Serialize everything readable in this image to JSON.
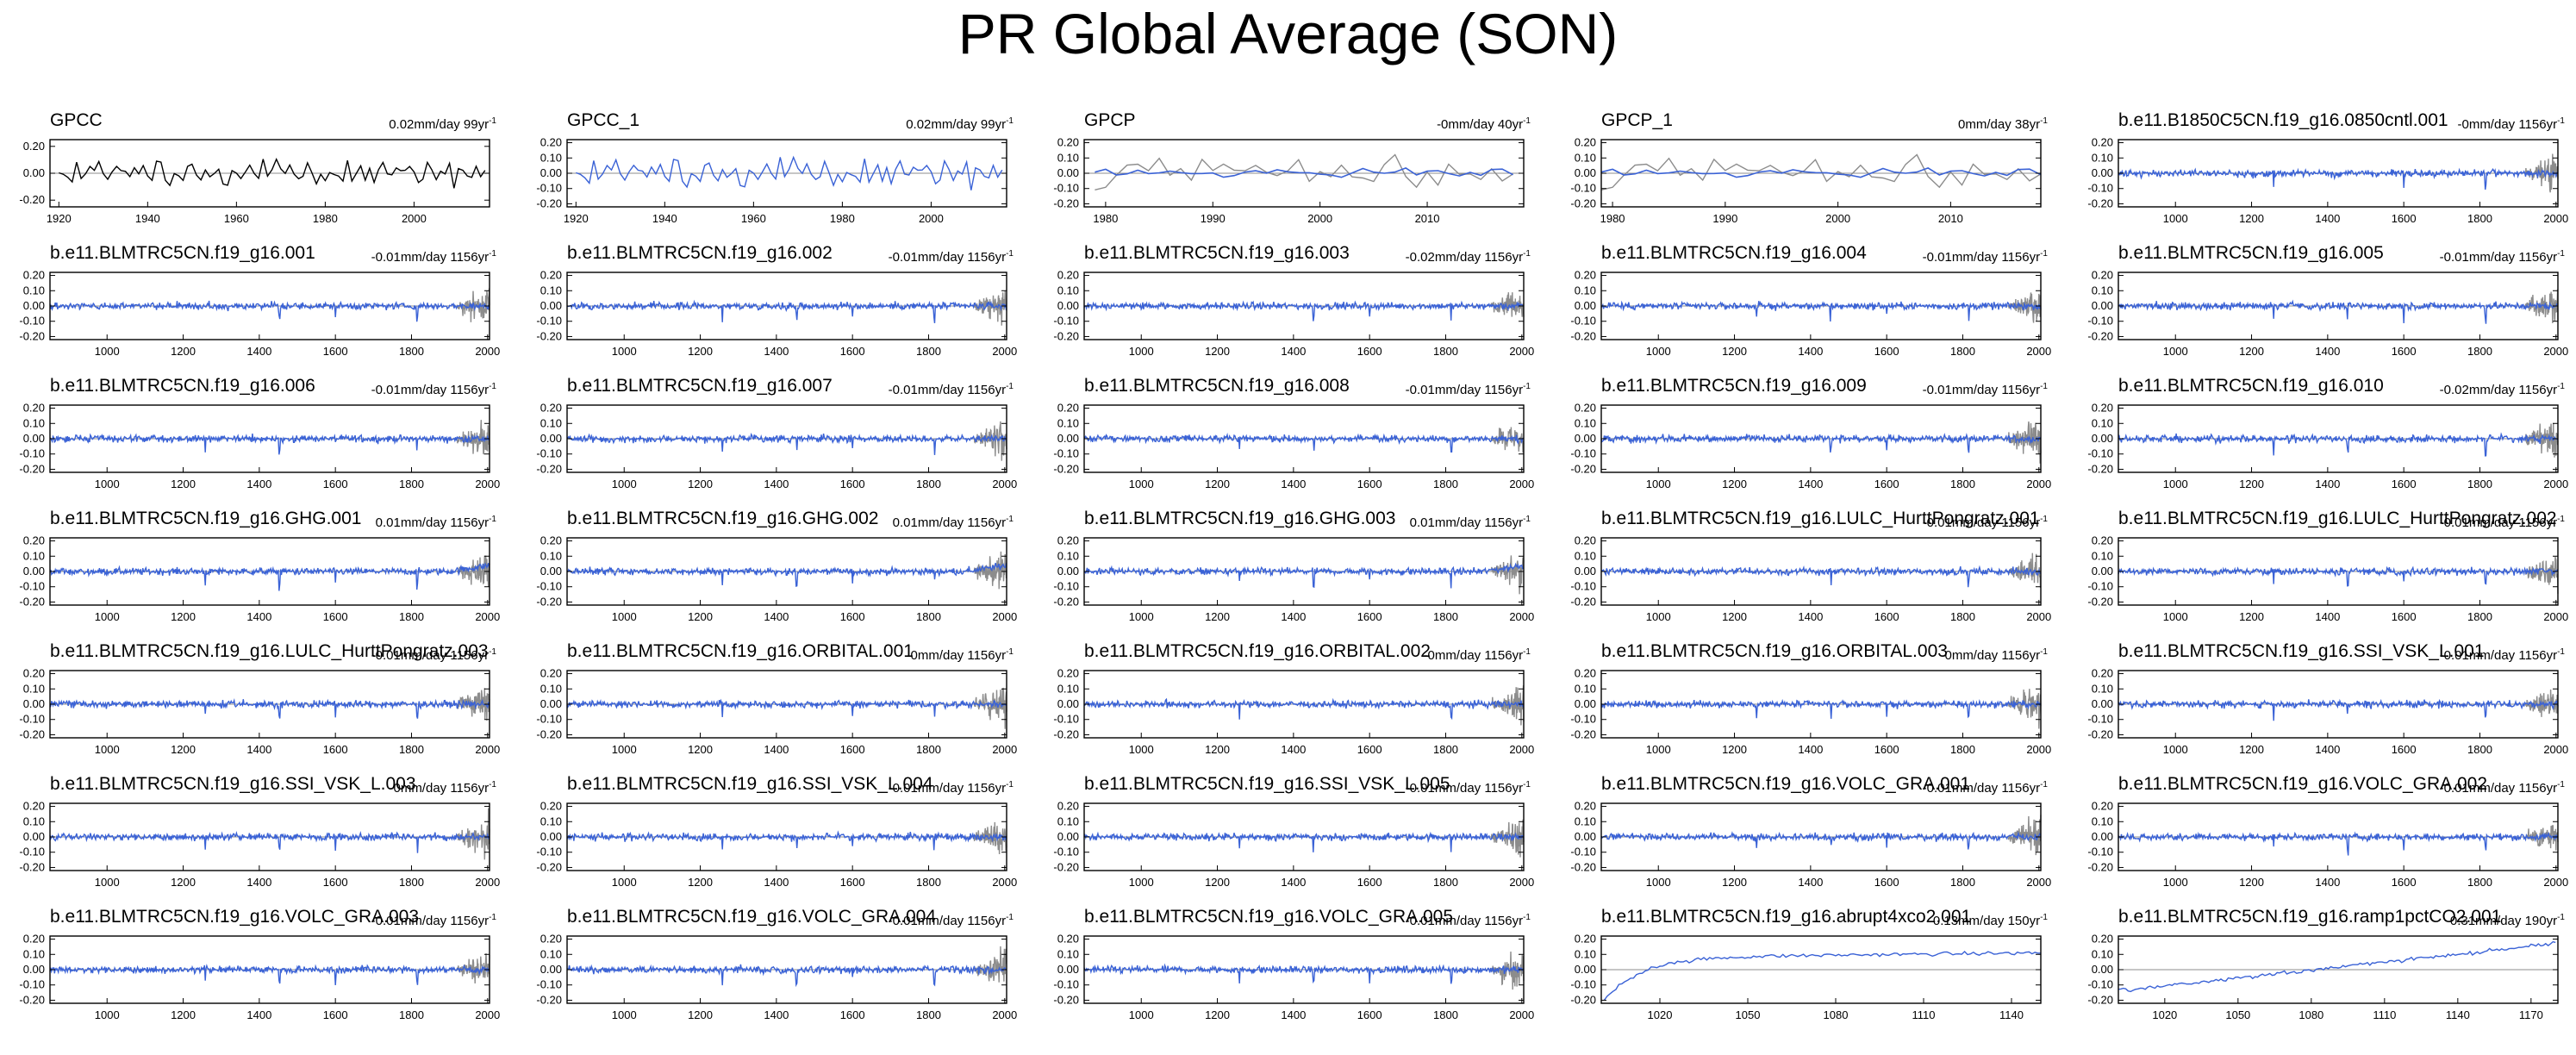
{
  "page_title": "PR Global Average (SON)",
  "colors": {
    "observed": "#000000",
    "model": "#3a62d6",
    "reference": "#8c8c8c",
    "zero_line": "#8c8c8c"
  },
  "chart_data": [
    {
      "type": "line",
      "title": "GPCC",
      "trend": "0.02mm/day 99yr",
      "trend_unit_exp": "-1",
      "xlim": [
        1918,
        2017
      ],
      "xticks": [
        1920,
        1940,
        1960,
        1980,
        2000
      ],
      "ylim": [
        -0.25,
        0.25
      ],
      "yticks": [
        -0.2,
        0,
        0.2
      ],
      "style": "obs_black",
      "seed": 3
    },
    {
      "type": "line",
      "title": "GPCC_1",
      "trend": "0.02mm/day 99yr",
      "trend_unit_exp": "-1",
      "xlim": [
        1918,
        2017
      ],
      "xticks": [
        1920,
        1940,
        1960,
        1980,
        2000
      ],
      "ylim": [
        -0.22,
        0.22
      ],
      "yticks": [
        -0.2,
        -0.1,
        0,
        0.1,
        0.2
      ],
      "style": "obs_blue",
      "seed": 3
    },
    {
      "type": "line",
      "title": "GPCP",
      "trend": "-0mm/day 40yr",
      "trend_unit_exp": "-1",
      "xlim": [
        1978,
        2019
      ],
      "xticks": [
        1980,
        1990,
        2000,
        2010
      ],
      "ylim": [
        -0.22,
        0.22
      ],
      "yticks": [
        -0.2,
        -0.1,
        0,
        0.1,
        0.2
      ],
      "style": "gpcp",
      "seed": 7
    },
    {
      "type": "line",
      "title": "GPCP_1",
      "trend": "0mm/day 38yr",
      "trend_unit_exp": "-1",
      "xlim": [
        1979,
        2018
      ],
      "xticks": [
        1980,
        1990,
        2000,
        2010
      ],
      "ylim": [
        -0.22,
        0.22
      ],
      "yticks": [
        -0.2,
        -0.1,
        0,
        0.1,
        0.2
      ],
      "style": "gpcp",
      "seed": 7
    },
    {
      "type": "line",
      "title": "b.e11.B1850C5CN.f19_g16.0850cntl.001",
      "trend": "-0mm/day 1156yr",
      "trend_unit_exp": "-1",
      "xlim": [
        850,
        2005
      ],
      "xticks": [
        1000,
        1200,
        1400,
        1600,
        1800,
        2000
      ],
      "ylim": [
        -0.22,
        0.22
      ],
      "yticks": [
        -0.2,
        -0.1,
        0,
        0.1,
        0.2
      ],
      "style": "model",
      "seed": 11
    },
    {
      "type": "line",
      "title": "b.e11.BLMTRC5CN.f19_g16.001",
      "trend": "-0.01mm/day 1156yr",
      "trend_unit_exp": "-1",
      "xlim": [
        850,
        2005
      ],
      "xticks": [
        1000,
        1200,
        1400,
        1600,
        1800,
        2000
      ],
      "ylim": [
        -0.22,
        0.22
      ],
      "yticks": [
        -0.2,
        -0.1,
        0,
        0.1,
        0.2
      ],
      "style": "model",
      "seed": 21
    },
    {
      "type": "line",
      "title": "b.e11.BLMTRC5CN.f19_g16.002",
      "trend": "-0.01mm/day 1156yr",
      "trend_unit_exp": "-1",
      "xlim": [
        850,
        2005
      ],
      "xticks": [
        1000,
        1200,
        1400,
        1600,
        1800,
        2000
      ],
      "ylim": [
        -0.22,
        0.22
      ],
      "yticks": [
        -0.2,
        -0.1,
        0,
        0.1,
        0.2
      ],
      "style": "model",
      "seed": 22
    },
    {
      "type": "line",
      "title": "b.e11.BLMTRC5CN.f19_g16.003",
      "trend": "-0.02mm/day 1156yr",
      "trend_unit_exp": "-1",
      "xlim": [
        850,
        2005
      ],
      "xticks": [
        1000,
        1200,
        1400,
        1600,
        1800,
        2000
      ],
      "ylim": [
        -0.22,
        0.22
      ],
      "yticks": [
        -0.2,
        -0.1,
        0,
        0.1,
        0.2
      ],
      "style": "model",
      "seed": 23
    },
    {
      "type": "line",
      "title": "b.e11.BLMTRC5CN.f19_g16.004",
      "trend": "-0.01mm/day 1156yr",
      "trend_unit_exp": "-1",
      "xlim": [
        850,
        2005
      ],
      "xticks": [
        1000,
        1200,
        1400,
        1600,
        1800,
        2000
      ],
      "ylim": [
        -0.22,
        0.22
      ],
      "yticks": [
        -0.2,
        -0.1,
        0,
        0.1,
        0.2
      ],
      "style": "model",
      "seed": 24
    },
    {
      "type": "line",
      "title": "b.e11.BLMTRC5CN.f19_g16.005",
      "trend": "-0.01mm/day 1156yr",
      "trend_unit_exp": "-1",
      "xlim": [
        850,
        2005
      ],
      "xticks": [
        1000,
        1200,
        1400,
        1600,
        1800,
        2000
      ],
      "ylim": [
        -0.22,
        0.22
      ],
      "yticks": [
        -0.2,
        -0.1,
        0,
        0.1,
        0.2
      ],
      "style": "model",
      "seed": 25
    },
    {
      "type": "line",
      "title": "b.e11.BLMTRC5CN.f19_g16.006",
      "trend": "-0.01mm/day 1156yr",
      "trend_unit_exp": "-1",
      "xlim": [
        850,
        2005
      ],
      "xticks": [
        1000,
        1200,
        1400,
        1600,
        1800,
        2000
      ],
      "ylim": [
        -0.22,
        0.22
      ],
      "yticks": [
        -0.2,
        -0.1,
        0,
        0.1,
        0.2
      ],
      "style": "model",
      "seed": 31
    },
    {
      "type": "line",
      "title": "b.e11.BLMTRC5CN.f19_g16.007",
      "trend": "-0.01mm/day 1156yr",
      "trend_unit_exp": "-1",
      "xlim": [
        850,
        2005
      ],
      "xticks": [
        1000,
        1200,
        1400,
        1600,
        1800,
        2000
      ],
      "ylim": [
        -0.22,
        0.22
      ],
      "yticks": [
        -0.2,
        -0.1,
        0,
        0.1,
        0.2
      ],
      "style": "model",
      "seed": 32
    },
    {
      "type": "line",
      "title": "b.e11.BLMTRC5CN.f19_g16.008",
      "trend": "-0.01mm/day 1156yr",
      "trend_unit_exp": "-1",
      "xlim": [
        850,
        2005
      ],
      "xticks": [
        1000,
        1200,
        1400,
        1600,
        1800,
        2000
      ],
      "ylim": [
        -0.22,
        0.22
      ],
      "yticks": [
        -0.2,
        -0.1,
        0,
        0.1,
        0.2
      ],
      "style": "model",
      "seed": 33
    },
    {
      "type": "line",
      "title": "b.e11.BLMTRC5CN.f19_g16.009",
      "trend": "-0.01mm/day 1156yr",
      "trend_unit_exp": "-1",
      "xlim": [
        850,
        2005
      ],
      "xticks": [
        1000,
        1200,
        1400,
        1600,
        1800,
        2000
      ],
      "ylim": [
        -0.22,
        0.22
      ],
      "yticks": [
        -0.2,
        -0.1,
        0,
        0.1,
        0.2
      ],
      "style": "model",
      "seed": 34
    },
    {
      "type": "line",
      "title": "b.e11.BLMTRC5CN.f19_g16.010",
      "trend": "-0.02mm/day 1156yr",
      "trend_unit_exp": "-1",
      "xlim": [
        850,
        2005
      ],
      "xticks": [
        1000,
        1200,
        1400,
        1600,
        1800,
        2000
      ],
      "ylim": [
        -0.22,
        0.22
      ],
      "yticks": [
        -0.2,
        -0.1,
        0,
        0.1,
        0.2
      ],
      "style": "model",
      "seed": 35
    },
    {
      "type": "line",
      "title": "b.e11.BLMTRC5CN.f19_g16.GHG.001",
      "trend": "0.01mm/day 1156yr",
      "trend_unit_exp": "-1",
      "xlim": [
        850,
        2005
      ],
      "xticks": [
        1000,
        1200,
        1400,
        1600,
        1800,
        2000
      ],
      "ylim": [
        -0.22,
        0.22
      ],
      "yticks": [
        -0.2,
        -0.1,
        0,
        0.1,
        0.2
      ],
      "style": "ghg",
      "seed": 41
    },
    {
      "type": "line",
      "title": "b.e11.BLMTRC5CN.f19_g16.GHG.002",
      "trend": "0.01mm/day 1156yr",
      "trend_unit_exp": "-1",
      "xlim": [
        850,
        2005
      ],
      "xticks": [
        1000,
        1200,
        1400,
        1600,
        1800,
        2000
      ],
      "ylim": [
        -0.22,
        0.22
      ],
      "yticks": [
        -0.2,
        -0.1,
        0,
        0.1,
        0.2
      ],
      "style": "ghg",
      "seed": 42
    },
    {
      "type": "line",
      "title": "b.e11.BLMTRC5CN.f19_g16.GHG.003",
      "trend": "0.01mm/day 1156yr",
      "trend_unit_exp": "-1",
      "xlim": [
        850,
        2005
      ],
      "xticks": [
        1000,
        1200,
        1400,
        1600,
        1800,
        2000
      ],
      "ylim": [
        -0.22,
        0.22
      ],
      "yticks": [
        -0.2,
        -0.1,
        0,
        0.1,
        0.2
      ],
      "style": "ghg",
      "seed": 43
    },
    {
      "type": "line",
      "title": "b.e11.BLMTRC5CN.f19_g16.LULC_HurttPongratz.001",
      "trend": "-0.01mm/day 1156yr",
      "trend_unit_exp": "-1",
      "xlim": [
        850,
        2005
      ],
      "xticks": [
        1000,
        1200,
        1400,
        1600,
        1800,
        2000
      ],
      "ylim": [
        -0.22,
        0.22
      ],
      "yticks": [
        -0.2,
        -0.1,
        0,
        0.1,
        0.2
      ],
      "style": "model",
      "seed": 44
    },
    {
      "type": "line",
      "title": "b.e11.BLMTRC5CN.f19_g16.LULC_HurttPongratz.002",
      "trend": "-0.01mm/day 1156yr",
      "trend_unit_exp": "-1",
      "xlim": [
        850,
        2005
      ],
      "xticks": [
        1000,
        1200,
        1400,
        1600,
        1800,
        2000
      ],
      "ylim": [
        -0.22,
        0.22
      ],
      "yticks": [
        -0.2,
        -0.1,
        0,
        0.1,
        0.2
      ],
      "style": "model",
      "seed": 45
    },
    {
      "type": "line",
      "title": "b.e11.BLMTRC5CN.f19_g16.LULC_HurttPongratz.003",
      "trend": "-0.01mm/day 1156yr",
      "trend_unit_exp": "-1",
      "xlim": [
        850,
        2005
      ],
      "xticks": [
        1000,
        1200,
        1400,
        1600,
        1800,
        2000
      ],
      "ylim": [
        -0.22,
        0.22
      ],
      "yticks": [
        -0.2,
        -0.1,
        0,
        0.1,
        0.2
      ],
      "style": "model",
      "seed": 51
    },
    {
      "type": "line",
      "title": "b.e11.BLMTRC5CN.f19_g16.ORBITAL.001",
      "trend": "0mm/day 1156yr",
      "trend_unit_exp": "-1",
      "xlim": [
        850,
        2005
      ],
      "xticks": [
        1000,
        1200,
        1400,
        1600,
        1800,
        2000
      ],
      "ylim": [
        -0.22,
        0.22
      ],
      "yticks": [
        -0.2,
        -0.1,
        0,
        0.1,
        0.2
      ],
      "style": "model",
      "seed": 52
    },
    {
      "type": "line",
      "title": "b.e11.BLMTRC5CN.f19_g16.ORBITAL.002",
      "trend": "-0mm/day 1156yr",
      "trend_unit_exp": "-1",
      "xlim": [
        850,
        2005
      ],
      "xticks": [
        1000,
        1200,
        1400,
        1600,
        1800,
        2000
      ],
      "ylim": [
        -0.22,
        0.22
      ],
      "yticks": [
        -0.2,
        -0.1,
        0,
        0.1,
        0.2
      ],
      "style": "model",
      "seed": 53
    },
    {
      "type": "line",
      "title": "b.e11.BLMTRC5CN.f19_g16.ORBITAL.003",
      "trend": "-0mm/day 1156yr",
      "trend_unit_exp": "-1",
      "xlim": [
        850,
        2005
      ],
      "xticks": [
        1000,
        1200,
        1400,
        1600,
        1800,
        2000
      ],
      "ylim": [
        -0.22,
        0.22
      ],
      "yticks": [
        -0.2,
        -0.1,
        0,
        0.1,
        0.2
      ],
      "style": "model",
      "seed": 54
    },
    {
      "type": "line",
      "title": "b.e11.BLMTRC5CN.f19_g16.SSI_VSK_L.001",
      "trend": "-0.01mm/day 1156yr",
      "trend_unit_exp": "-1",
      "xlim": [
        850,
        2005
      ],
      "xticks": [
        1000,
        1200,
        1400,
        1600,
        1800,
        2000
      ],
      "ylim": [
        -0.22,
        0.22
      ],
      "yticks": [
        -0.2,
        -0.1,
        0,
        0.1,
        0.2
      ],
      "style": "model",
      "seed": 55
    },
    {
      "type": "line",
      "title": "b.e11.BLMTRC5CN.f19_g16.SSI_VSK_L.003",
      "trend": "-0mm/day 1156yr",
      "trend_unit_exp": "-1",
      "xlim": [
        850,
        2005
      ],
      "xticks": [
        1000,
        1200,
        1400,
        1600,
        1800,
        2000
      ],
      "ylim": [
        -0.22,
        0.22
      ],
      "yticks": [
        -0.2,
        -0.1,
        0,
        0.1,
        0.2
      ],
      "style": "model",
      "seed": 61
    },
    {
      "type": "line",
      "title": "b.e11.BLMTRC5CN.f19_g16.SSI_VSK_L.004",
      "trend": "-0.01mm/day 1156yr",
      "trend_unit_exp": "-1",
      "xlim": [
        850,
        2005
      ],
      "xticks": [
        1000,
        1200,
        1400,
        1600,
        1800,
        2000
      ],
      "ylim": [
        -0.22,
        0.22
      ],
      "yticks": [
        -0.2,
        -0.1,
        0,
        0.1,
        0.2
      ],
      "style": "model",
      "seed": 62
    },
    {
      "type": "line",
      "title": "b.e11.BLMTRC5CN.f19_g16.SSI_VSK_L.005",
      "trend": "-0.01mm/day 1156yr",
      "trend_unit_exp": "-1",
      "xlim": [
        850,
        2005
      ],
      "xticks": [
        1000,
        1200,
        1400,
        1600,
        1800,
        2000
      ],
      "ylim": [
        -0.22,
        0.22
      ],
      "yticks": [
        -0.2,
        -0.1,
        0,
        0.1,
        0.2
      ],
      "style": "model",
      "seed": 63
    },
    {
      "type": "line",
      "title": "b.e11.BLMTRC5CN.f19_g16.VOLC_GRA.001",
      "trend": "-0.01mm/day 1156yr",
      "trend_unit_exp": "-1",
      "xlim": [
        850,
        2005
      ],
      "xticks": [
        1000,
        1200,
        1400,
        1600,
        1800,
        2000
      ],
      "ylim": [
        -0.22,
        0.22
      ],
      "yticks": [
        -0.2,
        -0.1,
        0,
        0.1,
        0.2
      ],
      "style": "model",
      "seed": 64
    },
    {
      "type": "line",
      "title": "b.e11.BLMTRC5CN.f19_g16.VOLC_GRA.002",
      "trend": "-0.01mm/day 1156yr",
      "trend_unit_exp": "-1",
      "xlim": [
        850,
        2005
      ],
      "xticks": [
        1000,
        1200,
        1400,
        1600,
        1800,
        2000
      ],
      "ylim": [
        -0.22,
        0.22
      ],
      "yticks": [
        -0.2,
        -0.1,
        0,
        0.1,
        0.2
      ],
      "style": "model",
      "seed": 65
    },
    {
      "type": "line",
      "title": "b.e11.BLMTRC5CN.f19_g16.VOLC_GRA.003",
      "trend": "-0.01mm/day 1156yr",
      "trend_unit_exp": "-1",
      "xlim": [
        850,
        2005
      ],
      "xticks": [
        1000,
        1200,
        1400,
        1600,
        1800,
        2000
      ],
      "ylim": [
        -0.22,
        0.22
      ],
      "yticks": [
        -0.2,
        -0.1,
        0,
        0.1,
        0.2
      ],
      "style": "model",
      "seed": 71
    },
    {
      "type": "line",
      "title": "b.e11.BLMTRC5CN.f19_g16.VOLC_GRA.004",
      "trend": "-0.01mm/day 1156yr",
      "trend_unit_exp": "-1",
      "xlim": [
        850,
        2005
      ],
      "xticks": [
        1000,
        1200,
        1400,
        1600,
        1800,
        2000
      ],
      "ylim": [
        -0.22,
        0.22
      ],
      "yticks": [
        -0.2,
        -0.1,
        0,
        0.1,
        0.2
      ],
      "style": "model",
      "seed": 72
    },
    {
      "type": "line",
      "title": "b.e11.BLMTRC5CN.f19_g16.VOLC_GRA.005",
      "trend": "-0.01mm/day 1156yr",
      "trend_unit_exp": "-1",
      "xlim": [
        850,
        2005
      ],
      "xticks": [
        1000,
        1200,
        1400,
        1600,
        1800,
        2000
      ],
      "ylim": [
        -0.22,
        0.22
      ],
      "yticks": [
        -0.2,
        -0.1,
        0,
        0.1,
        0.2
      ],
      "style": "model",
      "seed": 73
    },
    {
      "type": "line",
      "title": "b.e11.BLMTRC5CN.f19_g16.abrupt4xco2.001",
      "trend": "0.13mm/day 150yr",
      "trend_unit_exp": "-1",
      "xlim": [
        1000,
        1150
      ],
      "xticks": [
        1020,
        1050,
        1080,
        1110,
        1140
      ],
      "ylim": [
        -0.22,
        0.22
      ],
      "yticks": [
        -0.2,
        -0.1,
        0,
        0.1,
        0.2
      ],
      "style": "abrupt",
      "seed": 74
    },
    {
      "type": "line",
      "title": "b.e11.BLMTRC5CN.f19_g16.ramp1pctCO2.001",
      "trend": "0.31mm/day 190yr",
      "trend_unit_exp": "-1",
      "xlim": [
        1001,
        1181
      ],
      "xticks": [
        1020,
        1050,
        1080,
        1110,
        1140,
        1170
      ],
      "ylim": [
        -0.22,
        0.22
      ],
      "yticks": [
        -0.2,
        -0.1,
        0,
        0.1,
        0.2
      ],
      "style": "ramp",
      "seed": 75
    }
  ]
}
